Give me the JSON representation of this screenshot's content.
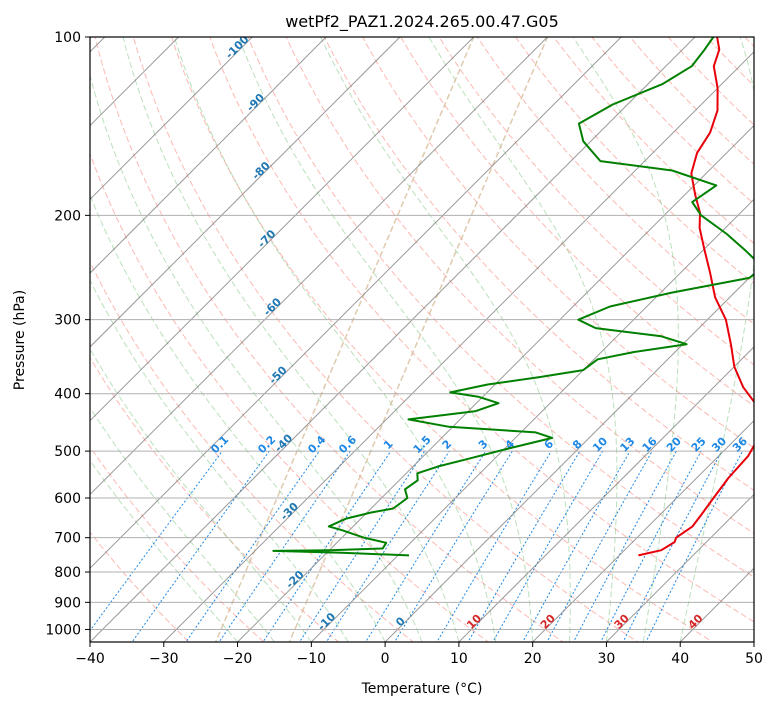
{
  "chart_data": {
    "type": "line",
    "title": "wetPf2_PAZ1.2024.265.00.47.G05",
    "xlabel": "Temperature (°C)",
    "ylabel": "Pressure (hPa)",
    "xlim": [
      -40,
      50
    ],
    "ylim": [
      1050,
      100
    ],
    "y_scale": "log",
    "grid": true,
    "x_ticks": [
      -40,
      -30,
      -20,
      -10,
      0,
      10,
      20,
      30,
      40,
      50
    ],
    "y_ticks": [
      1000,
      900,
      800,
      700,
      600,
      500,
      400,
      300,
      200,
      100
    ],
    "isotherm_labels": [
      "-100",
      "-90",
      "-80",
      "-70",
      "-60",
      "-50",
      "-40",
      "-30",
      "-20",
      "-10",
      "0",
      "10",
      "20",
      "30",
      "40"
    ],
    "mixing_ratio_labels": [
      "0.1",
      "0.2",
      "0.4",
      "0.6",
      "1",
      "1.5",
      "2",
      "3",
      "4",
      "6",
      "8",
      "10",
      "13",
      "16",
      "20",
      "25",
      "30",
      "36"
    ],
    "colors": {
      "temperature": "#e8000b",
      "dewpoint": "#008000",
      "isotherm_label": "#1f77b4",
      "isotherm_label_warm": "#d62728",
      "mixing_ratio": "#1e88e5",
      "dry_adiabat": "#fa8072",
      "moist_adiabat": "#66bb6a",
      "grid": "#b0b0b0",
      "skewed_isotherm": "#808080",
      "boundary_curve": "#d2b48c"
    },
    "series": [
      {
        "key": "temperature",
        "points": [
          [
            22.6,
            750
          ],
          [
            25.0,
            735
          ],
          [
            25.7,
            712
          ],
          [
            25.3,
            700
          ],
          [
            26.0,
            670
          ],
          [
            25.6,
            640
          ],
          [
            25.0,
            600
          ],
          [
            24.3,
            555
          ],
          [
            24.0,
            510
          ],
          [
            23.1,
            480
          ],
          [
            21.5,
            450
          ],
          [
            18.5,
            420
          ],
          [
            14.0,
            390
          ],
          [
            10.0,
            360
          ],
          [
            6.5,
            330
          ],
          [
            2.5,
            300
          ],
          [
            -2.0,
            275
          ],
          [
            -6.0,
            250
          ],
          [
            -10.0,
            228
          ],
          [
            -13.5,
            210
          ],
          [
            -15.5,
            198
          ],
          [
            -18.5,
            185
          ],
          [
            -22.0,
            170
          ],
          [
            -24.0,
            157
          ],
          [
            -25.0,
            145
          ],
          [
            -27.0,
            133
          ],
          [
            -30.0,
            122
          ],
          [
            -33.5,
            112
          ],
          [
            -35.0,
            105
          ],
          [
            -37.0,
            100
          ]
        ]
      },
      {
        "key": "dewpoint",
        "points": [
          [
            -8.5,
            750
          ],
          [
            -18.0,
            742
          ],
          [
            -27.5,
            737
          ],
          [
            -20.0,
            735
          ],
          [
            -13.0,
            730
          ],
          [
            -13.3,
            714
          ],
          [
            -17.0,
            700
          ],
          [
            -21.0,
            680
          ],
          [
            -23.3,
            670
          ],
          [
            -22.0,
            650
          ],
          [
            -19.5,
            635
          ],
          [
            -17.0,
            625
          ],
          [
            -16.5,
            600
          ],
          [
            -18.0,
            580
          ],
          [
            -17.5,
            560
          ],
          [
            -18.5,
            545
          ],
          [
            -16.5,
            530
          ],
          [
            -13.5,
            515
          ],
          [
            -9.5,
            495
          ],
          [
            -5.0,
            475
          ],
          [
            -8.0,
            465
          ],
          [
            -20.5,
            455
          ],
          [
            -27.0,
            442
          ],
          [
            -19.0,
            428
          ],
          [
            -17.0,
            415
          ],
          [
            -20.5,
            405
          ],
          [
            -25.0,
            398
          ],
          [
            -21.0,
            386
          ],
          [
            -15.0,
            375
          ],
          [
            -10.0,
            365
          ],
          [
            -9.5,
            350
          ],
          [
            -5.5,
            340
          ],
          [
            0.5,
            330
          ],
          [
            -4.0,
            320
          ],
          [
            -14.0,
            310
          ],
          [
            -17.5,
            300
          ],
          [
            -15.0,
            285
          ],
          [
            -8.5,
            270
          ],
          [
            0.0,
            255
          ],
          [
            0.5,
            245
          ],
          [
            -4.0,
            230
          ],
          [
            -9.0,
            215
          ],
          [
            -15.0,
            200
          ],
          [
            -18.0,
            190
          ],
          [
            -17.0,
            178
          ],
          [
            -25.0,
            168
          ],
          [
            -36.0,
            162
          ],
          [
            -41.0,
            150
          ],
          [
            -44.0,
            140
          ],
          [
            -42.0,
            130
          ],
          [
            -38.0,
            120
          ],
          [
            -36.5,
            112
          ],
          [
            -37.0,
            105
          ],
          [
            -37.5,
            100
          ]
        ]
      }
    ]
  }
}
